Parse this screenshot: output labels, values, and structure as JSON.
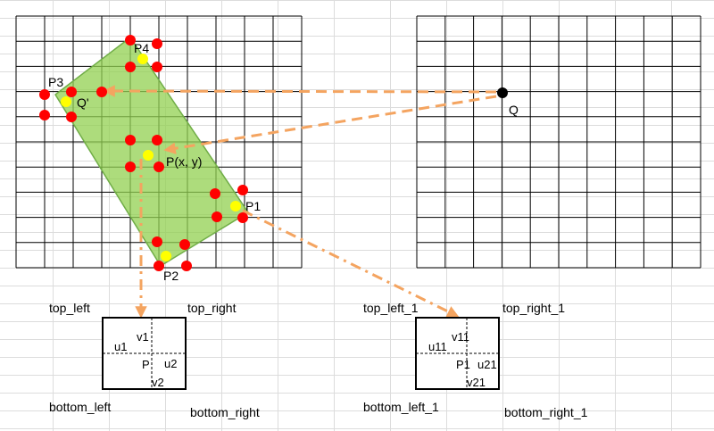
{
  "points": {
    "p1": "P1",
    "p2": "P2",
    "p3": "P3",
    "p4": "P4",
    "q_prime": "Q'",
    "q": "Q",
    "p": "P(x, y)"
  },
  "left_box": {
    "top_left": "top_left",
    "top_right": "top_right",
    "bottom_left": "bottom_left",
    "bottom_right": "bottom_right",
    "u1": "u1",
    "u2": "u2",
    "v1": "v1",
    "v2": "v2",
    "center": "P"
  },
  "right_box": {
    "top_left": "top_left_1",
    "top_right": "top_right_1",
    "bottom_left": "bottom_left_1",
    "bottom_right": "bottom_right_1",
    "u1": "u11",
    "u2": "u21",
    "v1": "v11",
    "v2": "v21",
    "center": "P1"
  },
  "colors": {
    "rect_fill": "#92d050",
    "rect_stroke": "#70ad47",
    "red_point": "#ff0000",
    "yellow_point": "#ffff00",
    "arrow": "#f4a460"
  }
}
